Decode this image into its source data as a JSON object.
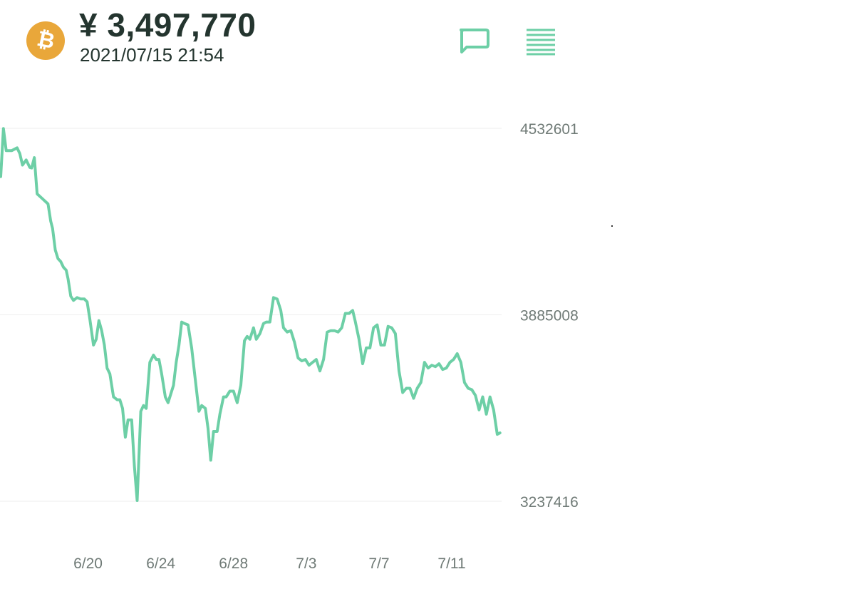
{
  "header": {
    "coin_icon": "bitcoin-icon",
    "coin_symbol": "₿",
    "price": "¥ 3,497,770",
    "timestamp": "2021/07/15 21:54",
    "chat_icon": "chat-bubble-icon",
    "menu_icon": "menu-lines-icon"
  },
  "colors": {
    "accent": "#6dcfa6",
    "coin": "#e9a73a",
    "text_dark": "#24352f",
    "axis_text": "#6f7a76",
    "grid": "#eeeeee"
  },
  "chart_data": {
    "type": "line",
    "title": "",
    "xlabel": "",
    "ylabel": "",
    "ylim": [
      3237416,
      4532601
    ],
    "y_ticks": [
      "4532601",
      "3885008",
      "3237416"
    ],
    "x_ticks": [
      {
        "label": "6/20",
        "x": 4.8
      },
      {
        "label": "6/24",
        "x": 8.8
      },
      {
        "label": "6/28",
        "x": 12.8
      },
      {
        "label": "7/3",
        "x": 16.8
      },
      {
        "label": "7/7",
        "x": 20.8
      },
      {
        "label": "7/11",
        "x": 24.8
      }
    ],
    "x_range": [
      0,
      27.5
    ],
    "grid": true,
    "series": [
      {
        "values": [
          [
            0.0,
            4365000
          ],
          [
            0.15,
            4532000
          ],
          [
            0.3,
            4455000
          ],
          [
            0.6,
            4455000
          ],
          [
            0.9,
            4465000
          ],
          [
            1.05,
            4445000
          ],
          [
            1.2,
            4405000
          ],
          [
            1.4,
            4423000
          ],
          [
            1.6,
            4397000
          ],
          [
            1.7,
            4395000
          ],
          [
            1.85,
            4431000
          ],
          [
            2.0,
            4305000
          ],
          [
            2.3,
            4288000
          ],
          [
            2.6,
            4270000
          ],
          [
            2.75,
            4210000
          ],
          [
            2.85,
            4185000
          ],
          [
            3.0,
            4110000
          ],
          [
            3.15,
            4080000
          ],
          [
            3.3,
            4070000
          ],
          [
            3.45,
            4050000
          ],
          [
            3.6,
            4040000
          ],
          [
            3.7,
            4010000
          ],
          [
            3.85,
            3950000
          ],
          [
            4.0,
            3935000
          ],
          [
            4.2,
            3945000
          ],
          [
            4.4,
            3940000
          ],
          [
            4.6,
            3940000
          ],
          [
            4.75,
            3930000
          ],
          [
            4.9,
            3870000
          ],
          [
            5.1,
            3780000
          ],
          [
            5.25,
            3800000
          ],
          [
            5.4,
            3865000
          ],
          [
            5.55,
            3830000
          ],
          [
            5.7,
            3780000
          ],
          [
            5.85,
            3700000
          ],
          [
            6.0,
            3680000
          ],
          [
            6.2,
            3600000
          ],
          [
            6.4,
            3590000
          ],
          [
            6.55,
            3590000
          ],
          [
            6.7,
            3560000
          ],
          [
            6.85,
            3460000
          ],
          [
            7.0,
            3520000
          ],
          [
            7.2,
            3520000
          ],
          [
            7.35,
            3360000
          ],
          [
            7.5,
            3240000
          ],
          [
            7.7,
            3550000
          ],
          [
            7.85,
            3570000
          ],
          [
            8.0,
            3560000
          ],
          [
            8.2,
            3720000
          ],
          [
            8.4,
            3745000
          ],
          [
            8.55,
            3730000
          ],
          [
            8.7,
            3730000
          ],
          [
            8.85,
            3680000
          ],
          [
            9.05,
            3600000
          ],
          [
            9.2,
            3580000
          ],
          [
            9.35,
            3610000
          ],
          [
            9.5,
            3640000
          ],
          [
            9.65,
            3720000
          ],
          [
            9.8,
            3780000
          ],
          [
            9.95,
            3860000
          ],
          [
            10.1,
            3855000
          ],
          [
            10.3,
            3850000
          ],
          [
            10.5,
            3770000
          ],
          [
            10.7,
            3660000
          ],
          [
            10.9,
            3550000
          ],
          [
            11.05,
            3570000
          ],
          [
            11.25,
            3560000
          ],
          [
            11.4,
            3490000
          ],
          [
            11.55,
            3380000
          ],
          [
            11.7,
            3480000
          ],
          [
            11.9,
            3480000
          ],
          [
            12.05,
            3540000
          ],
          [
            12.25,
            3600000
          ],
          [
            12.4,
            3600000
          ],
          [
            12.6,
            3620000
          ],
          [
            12.8,
            3620000
          ],
          [
            13.0,
            3580000
          ],
          [
            13.2,
            3640000
          ],
          [
            13.4,
            3795000
          ],
          [
            13.55,
            3810000
          ],
          [
            13.7,
            3800000
          ],
          [
            13.9,
            3840000
          ],
          [
            14.05,
            3800000
          ],
          [
            14.25,
            3820000
          ],
          [
            14.45,
            3855000
          ],
          [
            14.6,
            3860000
          ],
          [
            14.8,
            3860000
          ],
          [
            15.0,
            3945000
          ],
          [
            15.2,
            3940000
          ],
          [
            15.4,
            3900000
          ],
          [
            15.55,
            3840000
          ],
          [
            15.75,
            3825000
          ],
          [
            15.95,
            3830000
          ],
          [
            16.15,
            3790000
          ],
          [
            16.35,
            3735000
          ],
          [
            16.55,
            3725000
          ],
          [
            16.75,
            3730000
          ],
          [
            16.95,
            3710000
          ],
          [
            17.15,
            3720000
          ],
          [
            17.35,
            3730000
          ],
          [
            17.55,
            3690000
          ],
          [
            17.75,
            3730000
          ],
          [
            17.95,
            3825000
          ],
          [
            18.15,
            3830000
          ],
          [
            18.35,
            3830000
          ],
          [
            18.55,
            3825000
          ],
          [
            18.75,
            3840000
          ],
          [
            18.95,
            3890000
          ],
          [
            19.15,
            3890000
          ],
          [
            19.35,
            3900000
          ],
          [
            19.5,
            3860000
          ],
          [
            19.7,
            3800000
          ],
          [
            19.9,
            3715000
          ],
          [
            20.1,
            3770000
          ],
          [
            20.3,
            3770000
          ],
          [
            20.5,
            3840000
          ],
          [
            20.7,
            3850000
          ],
          [
            20.9,
            3780000
          ],
          [
            21.1,
            3780000
          ],
          [
            21.3,
            3845000
          ],
          [
            21.5,
            3840000
          ],
          [
            21.7,
            3820000
          ],
          [
            21.9,
            3690000
          ],
          [
            22.1,
            3615000
          ],
          [
            22.3,
            3630000
          ],
          [
            22.5,
            3630000
          ],
          [
            22.7,
            3595000
          ],
          [
            22.9,
            3630000
          ],
          [
            23.1,
            3650000
          ],
          [
            23.3,
            3720000
          ],
          [
            23.5,
            3700000
          ],
          [
            23.7,
            3710000
          ],
          [
            23.9,
            3705000
          ],
          [
            24.1,
            3715000
          ],
          [
            24.3,
            3695000
          ],
          [
            24.5,
            3700000
          ],
          [
            24.7,
            3720000
          ],
          [
            24.9,
            3730000
          ],
          [
            25.1,
            3750000
          ],
          [
            25.3,
            3720000
          ],
          [
            25.5,
            3650000
          ],
          [
            25.7,
            3630000
          ],
          [
            25.9,
            3625000
          ],
          [
            26.1,
            3605000
          ],
          [
            26.3,
            3555000
          ],
          [
            26.5,
            3600000
          ],
          [
            26.7,
            3540000
          ],
          [
            26.9,
            3600000
          ],
          [
            27.1,
            3555000
          ],
          [
            27.3,
            3470000
          ],
          [
            27.45,
            3475000
          ]
        ]
      }
    ]
  }
}
